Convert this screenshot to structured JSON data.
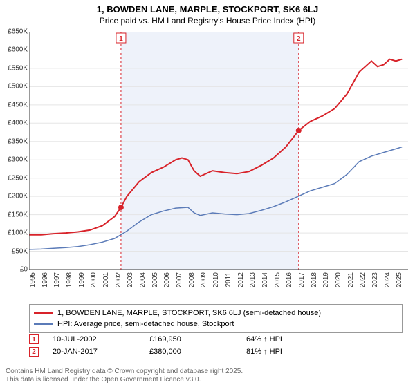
{
  "title": "1, BOWDEN LANE, MARPLE, STOCKPORT, SK6 6LJ",
  "subtitle": "Price paid vs. HM Land Registry's House Price Index (HPI)",
  "chart": {
    "type": "line",
    "background_color": "#ffffff",
    "shaded_band_color": "#eef2fa",
    "shaded_band_x_start": 2002.52,
    "shaded_band_x_end": 2017.05,
    "grid_color": "#e5e5e5",
    "axis_color": "#333333",
    "xlim": [
      1995,
      2026
    ],
    "ylim": [
      0,
      650000
    ],
    "y_ticks": [
      0,
      50000,
      100000,
      150000,
      200000,
      250000,
      300000,
      350000,
      400000,
      450000,
      500000,
      550000,
      600000,
      650000
    ],
    "y_tick_labels": [
      "£0",
      "£50K",
      "£100K",
      "£150K",
      "£200K",
      "£250K",
      "£300K",
      "£350K",
      "£400K",
      "£450K",
      "£500K",
      "£550K",
      "£600K",
      "£650K"
    ],
    "x_ticks": [
      1995,
      1996,
      1997,
      1998,
      1999,
      2000,
      2001,
      2002,
      2003,
      2004,
      2005,
      2006,
      2007,
      2008,
      2009,
      2010,
      2011,
      2012,
      2013,
      2014,
      2015,
      2016,
      2017,
      2018,
      2019,
      2020,
      2021,
      2022,
      2023,
      2024,
      2025
    ],
    "series": [
      {
        "name": "property",
        "label": "1, BOWDEN LANE, MARPLE, STOCKPORT, SK6 6LJ (semi-detached house)",
        "color": "#d8232a",
        "line_width": 2,
        "data": [
          [
            1995,
            95000
          ],
          [
            1996,
            95000
          ],
          [
            1997,
            98000
          ],
          [
            1998,
            100000
          ],
          [
            1999,
            103000
          ],
          [
            2000,
            108000
          ],
          [
            2001,
            120000
          ],
          [
            2002,
            145000
          ],
          [
            2002.52,
            169950
          ],
          [
            2003,
            200000
          ],
          [
            2004,
            240000
          ],
          [
            2005,
            265000
          ],
          [
            2006,
            280000
          ],
          [
            2007,
            300000
          ],
          [
            2007.5,
            305000
          ],
          [
            2008,
            300000
          ],
          [
            2008.5,
            270000
          ],
          [
            2009,
            255000
          ],
          [
            2010,
            270000
          ],
          [
            2011,
            265000
          ],
          [
            2012,
            262000
          ],
          [
            2013,
            268000
          ],
          [
            2014,
            285000
          ],
          [
            2015,
            305000
          ],
          [
            2016,
            335000
          ],
          [
            2017.05,
            380000
          ],
          [
            2018,
            405000
          ],
          [
            2019,
            420000
          ],
          [
            2020,
            440000
          ],
          [
            2021,
            480000
          ],
          [
            2022,
            540000
          ],
          [
            2023,
            570000
          ],
          [
            2023.5,
            555000
          ],
          [
            2024,
            560000
          ],
          [
            2024.5,
            575000
          ],
          [
            2025,
            570000
          ],
          [
            2025.5,
            575000
          ]
        ]
      },
      {
        "name": "hpi",
        "label": "HPI: Average price, semi-detached house, Stockport",
        "color": "#5b7bb8",
        "line_width": 1.5,
        "data": [
          [
            1995,
            55000
          ],
          [
            1996,
            56000
          ],
          [
            1997,
            58000
          ],
          [
            1998,
            60000
          ],
          [
            1999,
            63000
          ],
          [
            2000,
            68000
          ],
          [
            2001,
            75000
          ],
          [
            2002,
            85000
          ],
          [
            2003,
            105000
          ],
          [
            2004,
            130000
          ],
          [
            2005,
            150000
          ],
          [
            2006,
            160000
          ],
          [
            2007,
            168000
          ],
          [
            2008,
            170000
          ],
          [
            2008.5,
            155000
          ],
          [
            2009,
            148000
          ],
          [
            2010,
            155000
          ],
          [
            2011,
            152000
          ],
          [
            2012,
            150000
          ],
          [
            2013,
            153000
          ],
          [
            2014,
            162000
          ],
          [
            2015,
            172000
          ],
          [
            2016,
            185000
          ],
          [
            2017,
            200000
          ],
          [
            2018,
            215000
          ],
          [
            2019,
            225000
          ],
          [
            2020,
            235000
          ],
          [
            2021,
            260000
          ],
          [
            2022,
            295000
          ],
          [
            2023,
            310000
          ],
          [
            2024,
            320000
          ],
          [
            2025,
            330000
          ],
          [
            2025.5,
            335000
          ]
        ]
      }
    ],
    "sale_markers": [
      {
        "n": "1",
        "x": 2002.52,
        "y": 169950,
        "color": "#d8232a"
      },
      {
        "n": "2",
        "x": 2017.05,
        "y": 380000,
        "color": "#d8232a"
      }
    ],
    "sale_badges": [
      {
        "n": "1",
        "x": 2002.52,
        "color": "#d8232a"
      },
      {
        "n": "2",
        "x": 2017.05,
        "color": "#d8232a"
      }
    ]
  },
  "legend": [
    {
      "color": "#d8232a",
      "width": 2,
      "label": "1, BOWDEN LANE, MARPLE, STOCKPORT, SK6 6LJ (semi-detached house)"
    },
    {
      "color": "#5b7bb8",
      "width": 1.5,
      "label": "HPI: Average price, semi-detached house, Stockport"
    }
  ],
  "sales": [
    {
      "n": "1",
      "date": "10-JUL-2002",
      "price": "£169,950",
      "delta": "64% ↑ HPI",
      "color": "#d8232a"
    },
    {
      "n": "2",
      "date": "20-JAN-2017",
      "price": "£380,000",
      "delta": "81% ↑ HPI",
      "color": "#d8232a"
    }
  ],
  "footnote_line1": "Contains HM Land Registry data © Crown copyright and database right 2025.",
  "footnote_line2": "This data is licensed under the Open Government Licence v3.0."
}
